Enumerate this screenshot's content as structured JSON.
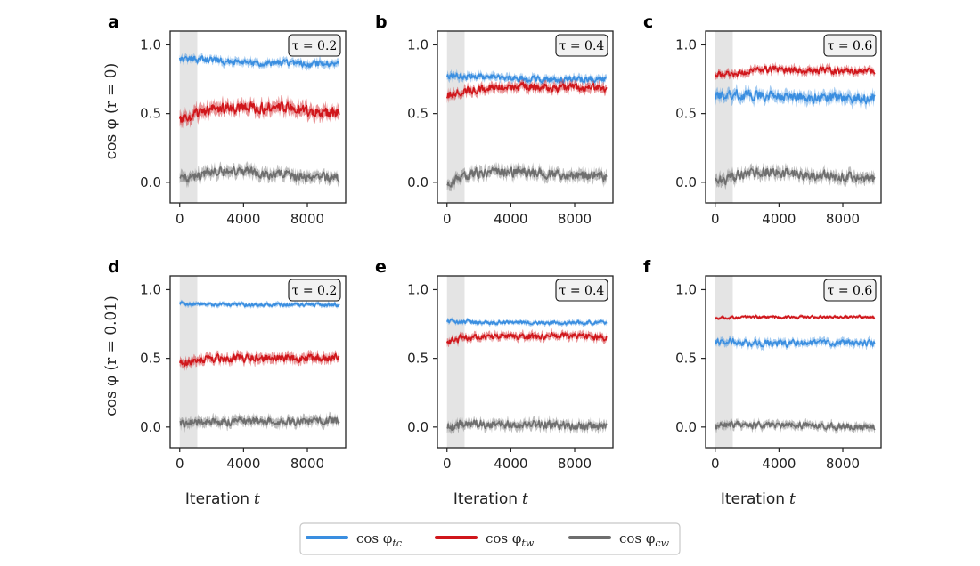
{
  "colors": {
    "tc": "#3a8ee0",
    "tw": "#d0161b",
    "cw": "#6e6e6e",
    "burnin": "#e4e4e4",
    "axis": "#222222"
  },
  "x_axis_label": {
    "text": "Iteration",
    "var": "t"
  },
  "row_ylabels": [
    "cos φ (r = 0)",
    "cos φ (r = 0.01)"
  ],
  "legend": [
    {
      "key": "tc",
      "label": "cos φ",
      "sub": "tc"
    },
    {
      "key": "tw",
      "label": "cos φ",
      "sub": "tw"
    },
    {
      "key": "cw",
      "label": "cos φ",
      "sub": "cw"
    }
  ],
  "chart_data": [
    {
      "panel": "a",
      "type": "line",
      "tau_label": "τ = 0.2",
      "r": 0,
      "burn_in": [
        0,
        1100
      ],
      "xlim": [
        -600,
        10400
      ],
      "ylim": [
        -0.15,
        1.1
      ],
      "xticks": [
        0,
        4000,
        8000
      ],
      "yticks": [
        0.0,
        0.5,
        1.0
      ],
      "ytick_labels": [
        "0.0",
        "0.5",
        "1.0"
      ],
      "series": [
        {
          "key": "tc",
          "name": "cos φtc",
          "x": [
            0,
            2000,
            4000,
            6000,
            8000,
            10000
          ],
          "y": [
            0.9,
            0.89,
            0.87,
            0.87,
            0.86,
            0.87
          ],
          "noise": 0.02
        },
        {
          "key": "tw",
          "name": "cos φtw",
          "x": [
            0,
            1000,
            2000,
            4000,
            6000,
            8000,
            10000
          ],
          "y": [
            0.45,
            0.49,
            0.53,
            0.54,
            0.55,
            0.52,
            0.5
          ],
          "noise": 0.035
        },
        {
          "key": "cw",
          "name": "cos φcw",
          "x": [
            0,
            1500,
            3500,
            6000,
            8000,
            10000
          ],
          "y": [
            0.02,
            0.06,
            0.09,
            0.06,
            0.04,
            0.03
          ],
          "noise": 0.03
        }
      ]
    },
    {
      "panel": "b",
      "type": "line",
      "tau_label": "τ = 0.4",
      "r": 0,
      "burn_in": [
        0,
        1100
      ],
      "xlim": [
        -600,
        10400
      ],
      "ylim": [
        -0.15,
        1.1
      ],
      "xticks": [
        0,
        4000,
        8000
      ],
      "yticks": [
        0.0,
        0.5,
        1.0
      ],
      "ytick_labels": [
        "0.0",
        "0.5",
        "1.0"
      ],
      "series": [
        {
          "key": "tc",
          "name": "cos φtc",
          "x": [
            0,
            2000,
            4000,
            6000,
            8000,
            10000
          ],
          "y": [
            0.78,
            0.77,
            0.76,
            0.75,
            0.75,
            0.75
          ],
          "noise": 0.02
        },
        {
          "key": "tw",
          "name": "cos φtw",
          "x": [
            0,
            1500,
            3000,
            5000,
            7000,
            10000
          ],
          "y": [
            0.63,
            0.67,
            0.69,
            0.7,
            0.69,
            0.69
          ],
          "noise": 0.025
        },
        {
          "key": "cw",
          "name": "cos φcw",
          "x": [
            0,
            1500,
            3000,
            5000,
            8000,
            10000
          ],
          "y": [
            0.0,
            0.06,
            0.08,
            0.07,
            0.05,
            0.04
          ],
          "noise": 0.03
        }
      ]
    },
    {
      "panel": "c",
      "type": "line",
      "tau_label": "τ = 0.6",
      "r": 0,
      "burn_in": [
        0,
        1100
      ],
      "xlim": [
        -600,
        10400
      ],
      "ylim": [
        -0.15,
        1.1
      ],
      "xticks": [
        0,
        4000,
        8000
      ],
      "yticks": [
        0.0,
        0.5,
        1.0
      ],
      "ytick_labels": [
        "0.0",
        "0.5",
        "1.0"
      ],
      "series": [
        {
          "key": "tw",
          "name": "cos φtw",
          "x": [
            0,
            1500,
            3000,
            5000,
            8000,
            10000
          ],
          "y": [
            0.78,
            0.8,
            0.82,
            0.82,
            0.81,
            0.81
          ],
          "noise": 0.02
        },
        {
          "key": "tc",
          "name": "cos φtc",
          "x": [
            0,
            1500,
            3000,
            5000,
            8000,
            10000
          ],
          "y": [
            0.63,
            0.64,
            0.63,
            0.62,
            0.61,
            0.61
          ],
          "noise": 0.03
        },
        {
          "key": "cw",
          "name": "cos φcw",
          "x": [
            0,
            1500,
            3000,
            5000,
            8000,
            10000
          ],
          "y": [
            0.0,
            0.05,
            0.08,
            0.06,
            0.04,
            0.03
          ],
          "noise": 0.03
        }
      ]
    },
    {
      "panel": "d",
      "type": "line",
      "tau_label": "τ = 0.2",
      "r": 0.01,
      "burn_in": [
        0,
        1100
      ],
      "xlim": [
        -600,
        10400
      ],
      "ylim": [
        -0.15,
        1.1
      ],
      "xticks": [
        0,
        4000,
        8000
      ],
      "yticks": [
        0.0,
        0.5,
        1.0
      ],
      "ytick_labels": [
        "0.0",
        "0.5",
        "1.0"
      ],
      "series": [
        {
          "key": "tc",
          "name": "cos φtc",
          "x": [
            0,
            2000,
            5000,
            8000,
            10000
          ],
          "y": [
            0.9,
            0.89,
            0.89,
            0.89,
            0.89
          ],
          "noise": 0.012
        },
        {
          "key": "tw",
          "name": "cos φtw",
          "x": [
            0,
            1000,
            2000,
            5000,
            8000,
            10000
          ],
          "y": [
            0.45,
            0.49,
            0.5,
            0.5,
            0.5,
            0.51
          ],
          "noise": 0.025
        },
        {
          "key": "cw",
          "name": "cos φcw",
          "x": [
            0,
            2000,
            5000,
            8000,
            10000
          ],
          "y": [
            0.02,
            0.04,
            0.04,
            0.04,
            0.05
          ],
          "noise": 0.025
        }
      ]
    },
    {
      "panel": "e",
      "type": "line",
      "tau_label": "τ = 0.4",
      "r": 0.01,
      "burn_in": [
        0,
        1100
      ],
      "xlim": [
        -600,
        10400
      ],
      "ylim": [
        -0.15,
        1.1
      ],
      "xticks": [
        0,
        4000,
        8000
      ],
      "yticks": [
        0.0,
        0.5,
        1.0
      ],
      "ytick_labels": [
        "0.0",
        "0.5",
        "1.0"
      ],
      "series": [
        {
          "key": "tc",
          "name": "cos φtc",
          "x": [
            0,
            2000,
            5000,
            8000,
            10000
          ],
          "y": [
            0.77,
            0.76,
            0.76,
            0.76,
            0.76
          ],
          "noise": 0.012
        },
        {
          "key": "tw",
          "name": "cos φtw",
          "x": [
            0,
            1000,
            2000,
            5000,
            8000,
            10000
          ],
          "y": [
            0.62,
            0.65,
            0.66,
            0.66,
            0.66,
            0.65
          ],
          "noise": 0.02
        },
        {
          "key": "cw",
          "name": "cos φcw",
          "x": [
            0,
            1000,
            2000,
            5000,
            8000,
            10000
          ],
          "y": [
            0.0,
            0.03,
            0.02,
            0.02,
            0.01,
            0.01
          ],
          "noise": 0.025
        }
      ]
    },
    {
      "panel": "f",
      "type": "line",
      "tau_label": "τ = 0.6",
      "r": 0.01,
      "burn_in": [
        0,
        1100
      ],
      "xlim": [
        -600,
        10400
      ],
      "ylim": [
        -0.15,
        1.1
      ],
      "xticks": [
        0,
        4000,
        8000
      ],
      "yticks": [
        0.0,
        0.5,
        1.0
      ],
      "ytick_labels": [
        "0.0",
        "0.5",
        "1.0"
      ],
      "series": [
        {
          "key": "tw",
          "name": "cos φtw",
          "x": [
            0,
            2000,
            5000,
            8000,
            10000
          ],
          "y": [
            0.79,
            0.8,
            0.8,
            0.8,
            0.8
          ],
          "noise": 0.008
        },
        {
          "key": "tc",
          "name": "cos φtc",
          "x": [
            0,
            1000,
            3000,
            6000,
            10000
          ],
          "y": [
            0.62,
            0.62,
            0.61,
            0.61,
            0.61
          ],
          "noise": 0.02
        },
        {
          "key": "cw",
          "name": "cos φcw",
          "x": [
            0,
            1000,
            3000,
            6000,
            10000
          ],
          "y": [
            0.01,
            0.02,
            0.01,
            0.01,
            0.0
          ],
          "noise": 0.02
        }
      ]
    }
  ]
}
